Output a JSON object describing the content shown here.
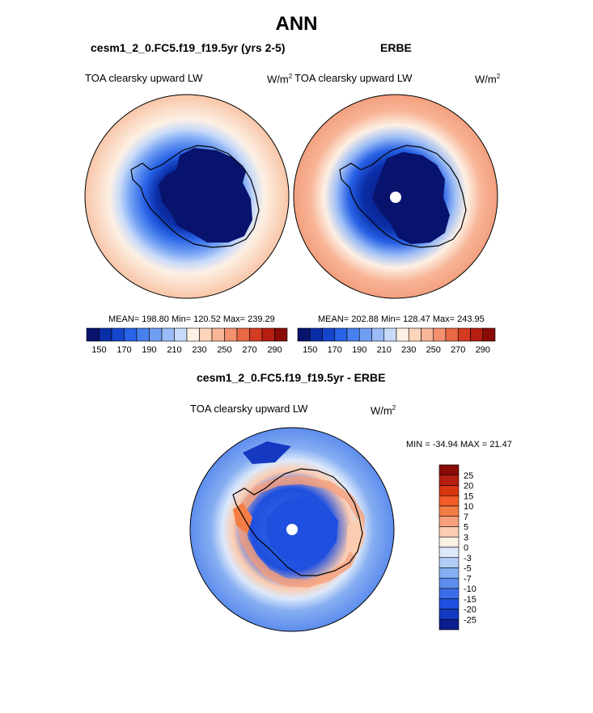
{
  "title": "ANN",
  "panels": {
    "model": {
      "title": "cesm1_2_0.FC5.f19_f19.5yr (yrs 2-5)",
      "variable": "TOA clearsky upward LW",
      "units_base": "W/m",
      "units_sup": "2",
      "stats": "MEAN= 198.80  Min= 120.52  Max= 239.29"
    },
    "obs": {
      "title": "ERBE",
      "variable": "TOA clearsky upward LW",
      "units_base": "W/m",
      "units_sup": "2",
      "stats": "MEAN= 202.88  Min= 128.47  Max= 243.95"
    },
    "diff": {
      "title": "cesm1_2_0.FC5.f19_f19.5yr - ERBE",
      "variable": "TOA clearsky upward LW",
      "units_base": "W/m",
      "units_sup": "2",
      "stats": "MIN = -34.94 MAX =  21.47"
    }
  },
  "chart_data": [
    {
      "type": "heatmap",
      "name": "model",
      "projection": "south polar stereographic",
      "colorbar": {
        "orientation": "horizontal",
        "colors": [
          "#08136e",
          "#0a2ea8",
          "#1545cc",
          "#2862e6",
          "#4680ee",
          "#6f9ef3",
          "#9bbcf6",
          "#c8daf9",
          "#fdf0e4",
          "#fcd5bb",
          "#f8b597",
          "#f3906e",
          "#e96a45",
          "#d43c22",
          "#b51e10",
          "#8a0b05"
        ],
        "tick_labels": [
          "150",
          "170",
          "190",
          "210",
          "230",
          "250",
          "270",
          "290"
        ]
      },
      "mean": 198.8,
      "min": 120.52,
      "max": 239.29
    },
    {
      "type": "heatmap",
      "name": "obs",
      "projection": "south polar stereographic",
      "colorbar": {
        "orientation": "horizontal",
        "colors": [
          "#08136e",
          "#0a2ea8",
          "#1545cc",
          "#2862e6",
          "#4680ee",
          "#6f9ef3",
          "#9bbcf6",
          "#c8daf9",
          "#fdf0e4",
          "#fcd5bb",
          "#f8b597",
          "#f3906e",
          "#e96a45",
          "#d43c22",
          "#b51e10",
          "#8a0b05"
        ],
        "tick_labels": [
          "150",
          "170",
          "190",
          "210",
          "230",
          "250",
          "270",
          "290"
        ]
      },
      "mean": 202.88,
      "min": 128.47,
      "max": 243.95
    },
    {
      "type": "heatmap",
      "name": "difference",
      "projection": "south polar stereographic",
      "colorbar": {
        "orientation": "vertical",
        "colors": [
          "#8a0b05",
          "#b51e10",
          "#d8360f",
          "#f25c26",
          "#f47d45",
          "#f6a07c",
          "#fcccb0",
          "#fdf0e4",
          "#dce8fb",
          "#b0ccf7",
          "#86aef2",
          "#5d8ded",
          "#3a6de8",
          "#1f4fdf",
          "#1438c0",
          "#0a1f8c"
        ],
        "tick_labels": [
          "25",
          "20",
          "15",
          "10",
          "7",
          "5",
          "3",
          "0",
          "-3",
          "-5",
          "-7",
          "-10",
          "-15",
          "-20",
          "-25"
        ]
      },
      "min": -34.94,
      "max": 21.47
    }
  ]
}
